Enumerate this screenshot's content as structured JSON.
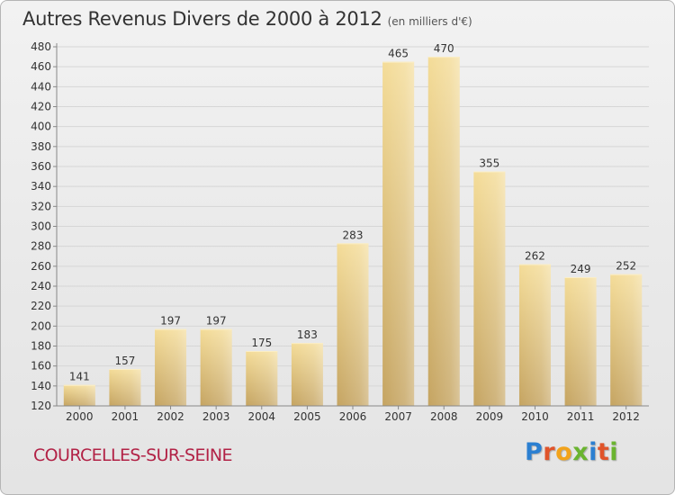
{
  "header": {
    "title": "Autres Revenus Divers de 2000 à 2012",
    "subtitle": "(en milliers d'€)"
  },
  "footer": {
    "commune": "COURCELLES-SUR-SEINE",
    "logo_letters": [
      {
        "char": "P",
        "color": "#2b7fd1"
      },
      {
        "char": "r",
        "color": "#e0542a"
      },
      {
        "char": "o",
        "color": "#f2a31b"
      },
      {
        "char": "x",
        "color": "#6ab42f"
      },
      {
        "char": "i",
        "color": "#2b7fd1"
      },
      {
        "char": "t",
        "color": "#e0542a"
      },
      {
        "char": "i",
        "color": "#6ab42f"
      }
    ]
  },
  "chart_data": {
    "type": "bar",
    "title": "Autres Revenus Divers de 2000 à 2012",
    "subtitle": "(en milliers d'€)",
    "xlabel": "",
    "ylabel": "",
    "categories": [
      "2000",
      "2001",
      "2002",
      "2003",
      "2004",
      "2005",
      "2006",
      "2007",
      "2008",
      "2009",
      "2010",
      "2011",
      "2012"
    ],
    "values": [
      141,
      157,
      197,
      197,
      175,
      183,
      283,
      465,
      470,
      355,
      262,
      249,
      252
    ],
    "data_labels": [
      "141",
      "157",
      "197",
      "197",
      "175",
      "183",
      "283",
      "465",
      "470",
      "355",
      "262",
      "249",
      "252"
    ],
    "ylim": [
      120,
      480
    ],
    "yticks": [
      120,
      140,
      160,
      180,
      200,
      220,
      240,
      260,
      280,
      300,
      320,
      340,
      360,
      380,
      400,
      420,
      440,
      460,
      480
    ],
    "ytick_labels": [
      "120",
      "140",
      "160",
      "180",
      "200",
      "220",
      "240",
      "260",
      "280",
      "300",
      "320",
      "340",
      "360",
      "380",
      "400",
      "420",
      "440",
      "460",
      "480"
    ],
    "grid": true,
    "legend": "none",
    "colors": {
      "bar_light": "#f4dc98",
      "bar_dark": "#c7a762",
      "grid": "#d6d6d6",
      "axis": "#888888"
    }
  }
}
